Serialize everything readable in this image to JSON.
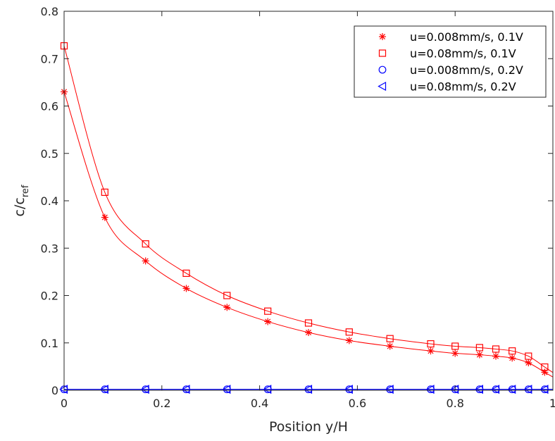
{
  "chart_data": {
    "type": "line",
    "xlabel": "Position y/H",
    "ylabel_main": "c/c",
    "ylabel_sub": "ref",
    "xlim": [
      0,
      1
    ],
    "ylim": [
      0,
      0.8
    ],
    "xticks": [
      0,
      0.2,
      0.4,
      0.6,
      0.8,
      1
    ],
    "xtick_labels": [
      "0",
      "0.2",
      "0.4",
      "0.6",
      "0.8",
      "1"
    ],
    "yticks": [
      0,
      0.1,
      0.2,
      0.3,
      0.4,
      0.5,
      0.6,
      0.7,
      0.8
    ],
    "ytick_labels": [
      "0",
      "0.1",
      "0.2",
      "0.3",
      "0.4",
      "0.5",
      "0.6",
      "0.7",
      "0.8"
    ],
    "grid": false,
    "legend_position": "top-right",
    "x": [
      0,
      0.0833,
      0.1667,
      0.25,
      0.3333,
      0.4167,
      0.5,
      0.5833,
      0.6667,
      0.75,
      0.8,
      0.85,
      0.8833,
      0.9167,
      0.95,
      0.9833
    ],
    "series": [
      {
        "name": "u=0.008mm/s, 0.1V",
        "marker": "asterisk",
        "color": "#ff0000",
        "values": [
          0.63,
          0.365,
          0.273,
          0.215,
          0.175,
          0.145,
          0.122,
          0.105,
          0.093,
          0.083,
          0.078,
          0.075,
          0.072,
          0.068,
          0.058,
          0.038
        ]
      },
      {
        "name": "u=0.08mm/s, 0.1V",
        "marker": "square",
        "color": "#ff0000",
        "values": [
          0.727,
          0.418,
          0.309,
          0.247,
          0.2,
          0.167,
          0.142,
          0.123,
          0.109,
          0.098,
          0.093,
          0.09,
          0.087,
          0.083,
          0.072,
          0.049
        ]
      },
      {
        "name": "u=0.008mm/s, 0.2V",
        "marker": "circle",
        "color": "#0000ff",
        "values": [
          0.002,
          0.002,
          0.002,
          0.002,
          0.002,
          0.002,
          0.002,
          0.002,
          0.002,
          0.002,
          0.002,
          0.002,
          0.002,
          0.002,
          0.002,
          0.002
        ]
      },
      {
        "name": "u=0.08mm/s, 0.2V",
        "marker": "triangle-left",
        "color": "#0000ff",
        "values": [
          0.002,
          0.002,
          0.002,
          0.002,
          0.002,
          0.002,
          0.002,
          0.002,
          0.002,
          0.002,
          0.002,
          0.002,
          0.002,
          0.002,
          0.002,
          0.002
        ]
      }
    ]
  }
}
